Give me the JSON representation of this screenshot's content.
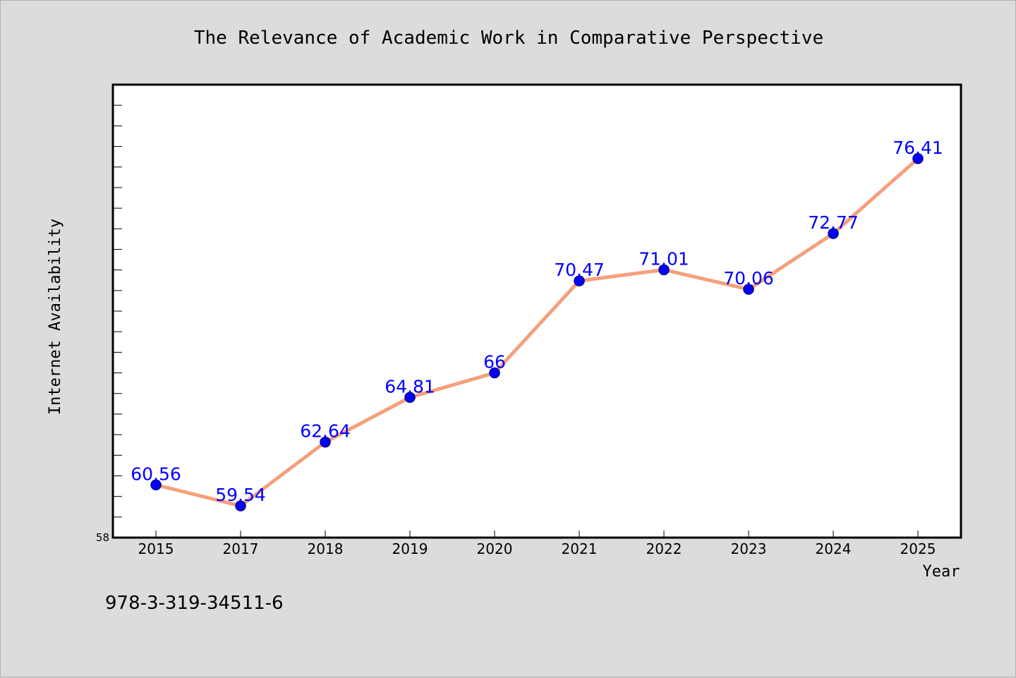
{
  "footer": {
    "isbn": "978-3-319-34511-6"
  },
  "colors": {
    "background": "#dcdcdc",
    "plot_background": "#ffffff",
    "line": "#f4a07c",
    "marker": "#0000ff",
    "marker_edge": "#00008b",
    "data_label": "#0000ff"
  },
  "chart_data": {
    "type": "line",
    "title": "The Relevance of Academic Work in Comparative Perspective",
    "xlabel": "Year",
    "ylabel": "Internet Availability",
    "categories": [
      "2015",
      "2017",
      "2018",
      "2019",
      "2020",
      "2021",
      "2022",
      "2023",
      "2024",
      "2025"
    ],
    "series": [
      {
        "values": [
          60.56,
          59.54,
          62.64,
          64.81,
          66,
          70.47,
          71.01,
          70.06,
          72.77,
          76.41
        ],
        "labels": [
          "60.56",
          "59.54",
          "62.64",
          "64.81",
          "66",
          "70.47",
          "71.01",
          "70.06",
          "72.77",
          "76.41"
        ]
      }
    ],
    "ylim": [
      58,
      80
    ],
    "y_tick_labels": [
      "58"
    ],
    "y_minor_step": 1,
    "grid": false,
    "legend": "none",
    "markers": true,
    "data_labels": true
  }
}
